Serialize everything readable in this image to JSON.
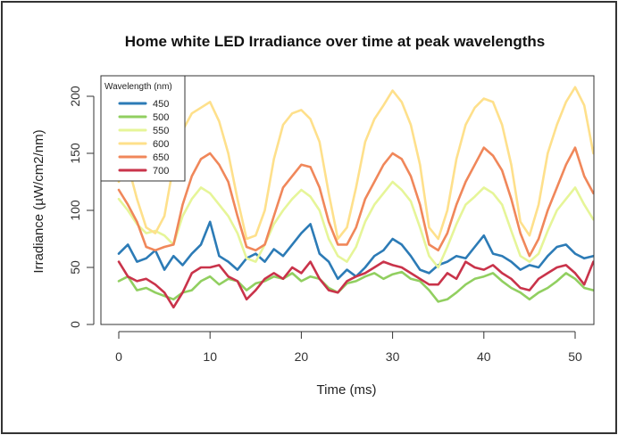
{
  "chart_data": {
    "type": "line",
    "title": "Home white LED Irradiance over time at peak wavelengths",
    "xlabel": "Time (ms)",
    "ylabel": "Irradiance (µW/cm2/nm)",
    "xlim": [
      -2,
      52
    ],
    "ylim": [
      0,
      218
    ],
    "xticks": [
      0,
      10,
      20,
      30,
      40,
      50
    ],
    "yticks": [
      0,
      50,
      100,
      150,
      200
    ],
    "grid": false,
    "legend": {
      "title": "Wavelength (nm)",
      "placement": "top-left"
    },
    "x": [
      0,
      1,
      2,
      3,
      4,
      5,
      6,
      7,
      8,
      9,
      10,
      11,
      12,
      13,
      14,
      15,
      16,
      17,
      18,
      19,
      20,
      21,
      22,
      23,
      24,
      25,
      26,
      27,
      28,
      29,
      30,
      31,
      32,
      33,
      34,
      35,
      36,
      37,
      38,
      39,
      40,
      41,
      42,
      43,
      44,
      45,
      46,
      47,
      48,
      49,
      50,
      51,
      52
    ],
    "series": [
      {
        "name": "450",
        "color": "#2c7bb6",
        "values": [
          62,
          70,
          55,
          58,
          65,
          48,
          60,
          52,
          62,
          70,
          90,
          60,
          55,
          48,
          58,
          62,
          55,
          66,
          60,
          70,
          80,
          88,
          62,
          55,
          40,
          48,
          42,
          50,
          60,
          65,
          75,
          70,
          60,
          48,
          45,
          52,
          55,
          60,
          58,
          68,
          78,
          62,
          60,
          55,
          48,
          52,
          50,
          60,
          68,
          70,
          62,
          58,
          60
        ]
      },
      {
        "name": "500",
        "color": "#91cf60",
        "values": [
          38,
          42,
          30,
          32,
          28,
          25,
          22,
          28,
          30,
          38,
          42,
          35,
          40,
          38,
          30,
          36,
          38,
          42,
          40,
          45,
          38,
          42,
          40,
          32,
          28,
          36,
          38,
          42,
          45,
          40,
          44,
          46,
          40,
          38,
          30,
          20,
          22,
          28,
          35,
          40,
          42,
          45,
          38,
          32,
          28,
          22,
          28,
          32,
          38,
          45,
          40,
          32,
          30
        ]
      },
      {
        "name": "550",
        "color": "#e6f598",
        "values": [
          110,
          100,
          88,
          80,
          82,
          78,
          70,
          95,
          110,
          120,
          115,
          105,
          95,
          80,
          58,
          55,
          70,
          88,
          100,
          110,
          118,
          112,
          100,
          75,
          60,
          55,
          68,
          90,
          105,
          115,
          125,
          118,
          108,
          85,
          60,
          50,
          68,
          88,
          105,
          112,
          120,
          115,
          105,
          82,
          60,
          55,
          62,
          82,
          100,
          110,
          120,
          105,
          92
        ]
      },
      {
        "name": "600",
        "color": "#fee08b",
        "values": [
          125,
          140,
          110,
          85,
          80,
          95,
          140,
          170,
          185,
          190,
          195,
          178,
          150,
          110,
          75,
          78,
          100,
          145,
          175,
          185,
          188,
          180,
          160,
          115,
          75,
          85,
          120,
          160,
          180,
          192,
          205,
          195,
          175,
          140,
          85,
          75,
          100,
          145,
          175,
          190,
          198,
          195,
          175,
          140,
          90,
          78,
          105,
          150,
          175,
          195,
          208,
          192,
          150
        ]
      },
      {
        "name": "650",
        "color": "#f0875a",
        "values": [
          118,
          105,
          90,
          68,
          65,
          68,
          70,
          105,
          130,
          145,
          150,
          140,
          125,
          95,
          68,
          65,
          70,
          95,
          120,
          130,
          140,
          138,
          120,
          90,
          70,
          70,
          85,
          110,
          125,
          140,
          150,
          145,
          130,
          105,
          70,
          65,
          80,
          105,
          125,
          140,
          155,
          148,
          135,
          110,
          80,
          60,
          75,
          100,
          120,
          140,
          155,
          130,
          115
        ]
      },
      {
        "name": "700",
        "color": "#c9334a",
        "values": [
          55,
          42,
          38,
          40,
          35,
          28,
          15,
          28,
          45,
          50,
          50,
          52,
          42,
          38,
          22,
          30,
          40,
          45,
          40,
          50,
          45,
          55,
          40,
          30,
          28,
          38,
          42,
          45,
          50,
          55,
          52,
          50,
          45,
          40,
          35,
          35,
          45,
          40,
          55,
          50,
          48,
          52,
          45,
          40,
          32,
          30,
          40,
          45,
          50,
          52,
          45,
          35,
          55
        ]
      }
    ]
  }
}
